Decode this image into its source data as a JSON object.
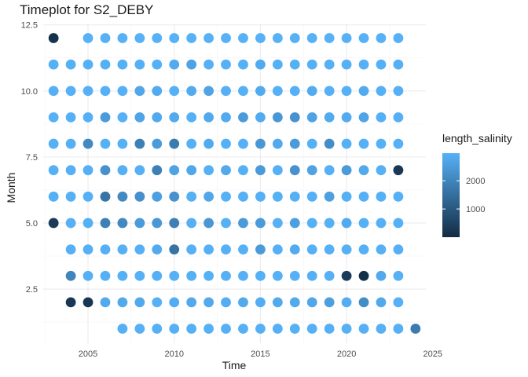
{
  "chart_data": {
    "type": "scatter",
    "title": "Timeplot for S2_DEBY",
    "xlabel": "Time",
    "ylabel": "Month",
    "xlim": [
      2002.4,
      2024.6
    ],
    "ylim": [
      0.45,
      12.55
    ],
    "x_ticks": [
      2005,
      2010,
      2015,
      2020,
      2025
    ],
    "x_tick_labels": [
      "2005",
      "2010",
      "2015",
      "2020",
      "2025"
    ],
    "y_ticks": [
      2.5,
      5.0,
      7.5,
      10.0,
      12.5
    ],
    "y_tick_labels": [
      "2.5",
      "5.0",
      "7.5",
      "10.0",
      "12.5"
    ],
    "grid": true,
    "legend": {
      "title": "length_salinity",
      "position": "right",
      "min": 0,
      "max": 2980,
      "ticks": [
        1000,
        2000
      ],
      "tick_labels": [
        "1000",
        "2000"
      ],
      "color_low": "#132B43",
      "color_high": "#56B1F7"
    },
    "rows": [
      {
        "month": 12,
        "start_year": 2003,
        "values": [
          150,
          null,
          2980,
          2980,
          2980,
          2980,
          2980,
          2980,
          2980,
          2980,
          2980,
          2980,
          2980,
          2980,
          2980,
          2980,
          2980,
          2980,
          2980,
          2980,
          2980
        ]
      },
      {
        "month": 11,
        "start_year": 2003,
        "values": [
          2950,
          2950,
          2950,
          2950,
          2950,
          2950,
          2950,
          2850,
          2650,
          2950,
          2950,
          2950,
          2850,
          2950,
          2950,
          2950,
          2950,
          2950,
          2950,
          2950,
          2950
        ]
      },
      {
        "month": 10,
        "start_year": 2003,
        "values": [
          2950,
          2950,
          2950,
          2950,
          2950,
          2750,
          2850,
          2950,
          2850,
          2700,
          2950,
          2950,
          2850,
          2950,
          2950,
          2850,
          2950,
          2950,
          2850,
          2950,
          2950
        ]
      },
      {
        "month": 9,
        "start_year": 2003,
        "values": [
          2950,
          2950,
          2950,
          2500,
          2950,
          2700,
          2800,
          2800,
          2950,
          2800,
          2850,
          2500,
          2850,
          2400,
          2300,
          2650,
          2850,
          2850,
          2700,
          2950,
          2950
        ]
      },
      {
        "month": 8,
        "start_year": 2003,
        "values": [
          2950,
          2950,
          2100,
          2950,
          2950,
          1900,
          2500,
          1800,
          2950,
          2850,
          2950,
          2950,
          2400,
          2800,
          2500,
          2950,
          2200,
          2950,
          2950,
          2950,
          2950
        ]
      },
      {
        "month": 7,
        "start_year": 2003,
        "values": [
          2950,
          2950,
          2950,
          2300,
          2950,
          2950,
          1900,
          2650,
          2750,
          2950,
          2800,
          2950,
          2500,
          2950,
          2300,
          2650,
          2950,
          2500,
          2800,
          2950,
          300
        ]
      },
      {
        "month": 6,
        "start_year": 2003,
        "values": [
          2950,
          2950,
          2950,
          1600,
          2100,
          2250,
          2600,
          2300,
          2950,
          2750,
          2950,
          2950,
          2950,
          2950,
          2950,
          2950,
          2600,
          2950,
          2950,
          2950,
          2950
        ]
      },
      {
        "month": 5,
        "start_year": 2003,
        "values": [
          350,
          2950,
          2950,
          1900,
          2100,
          2500,
          2400,
          1900,
          2950,
          2400,
          2950,
          2500,
          2500,
          2950,
          2600,
          2950,
          2950,
          2850,
          2950,
          2950,
          2950
        ]
      },
      {
        "month": 4,
        "start_year": 2003,
        "values": [
          null,
          2950,
          2950,
          2950,
          2950,
          2950,
          2850,
          1600,
          2950,
          2950,
          2950,
          2950,
          2500,
          2950,
          2850,
          2950,
          2950,
          2950,
          2950,
          2950,
          2950
        ]
      },
      {
        "month": 3,
        "start_year": 2003,
        "values": [
          null,
          2000,
          2950,
          2950,
          2950,
          2950,
          2950,
          2950,
          2950,
          2950,
          2950,
          2950,
          2950,
          2950,
          2950,
          2950,
          2950,
          350,
          100,
          2800,
          2950
        ]
      },
      {
        "month": 2,
        "start_year": 2003,
        "values": [
          null,
          250,
          250,
          2800,
          2800,
          2800,
          2950,
          2900,
          2800,
          2800,
          2900,
          2800,
          2900,
          2800,
          2800,
          2750,
          2600,
          2900,
          2200,
          2800,
          2950
        ]
      },
      {
        "month": 1,
        "start_year": 2003,
        "values": [
          null,
          null,
          null,
          null,
          2950,
          2950,
          2950,
          2950,
          2950,
          2950,
          2950,
          2950,
          2950,
          2950,
          2950,
          2950,
          2950,
          2950,
          2950,
          2950,
          2950,
          1800
        ]
      }
    ]
  }
}
